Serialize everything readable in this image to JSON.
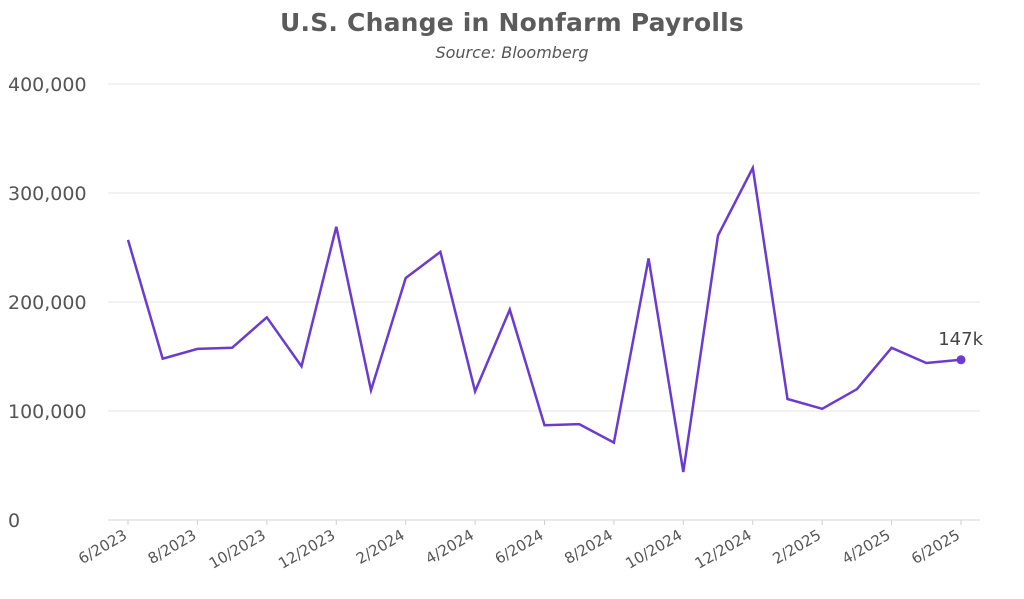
{
  "chart_data": {
    "type": "line",
    "title": "U.S. Change in Nonfarm Payrolls",
    "subtitle": "Source: Bloomberg",
    "xlabel": "",
    "ylabel": "",
    "ylim": [
      0,
      400000
    ],
    "yticks": [
      "0",
      "100,000",
      "200,000",
      "300,000",
      "400,000"
    ],
    "ytick_values": [
      0,
      100000,
      200000,
      300000,
      400000
    ],
    "xtick_labels": [
      "6/2023",
      "8/2023",
      "10/2023",
      "12/2023",
      "2/2024",
      "4/2024",
      "6/2024",
      "8/2024",
      "10/2024",
      "12/2024",
      "2/2025",
      "4/2025",
      "6/2025"
    ],
    "grid": true,
    "color": "#6a3bd1",
    "x": [
      "6/2023",
      "7/2023",
      "8/2023",
      "9/2023",
      "10/2023",
      "11/2023",
      "12/2023",
      "1/2024",
      "2/2024",
      "3/2024",
      "4/2024",
      "5/2024",
      "6/2024",
      "7/2024",
      "8/2024",
      "9/2024",
      "10/2024",
      "11/2024",
      "12/2024",
      "1/2025",
      "2/2025",
      "3/2025",
      "4/2025",
      "5/2025",
      "6/2025"
    ],
    "series": [
      {
        "values": [
          257000,
          148000,
          157000,
          158000,
          186000,
          141000,
          269000,
          119000,
          222000,
          246000,
          118000,
          193000,
          87000,
          88000,
          71000,
          240000,
          44000,
          261000,
          323000,
          111000,
          102000,
          120000,
          158000,
          144000,
          147000
        ]
      }
    ],
    "annotations": [
      {
        "text": "147k",
        "x": "6/2025",
        "y": 147000
      }
    ]
  }
}
